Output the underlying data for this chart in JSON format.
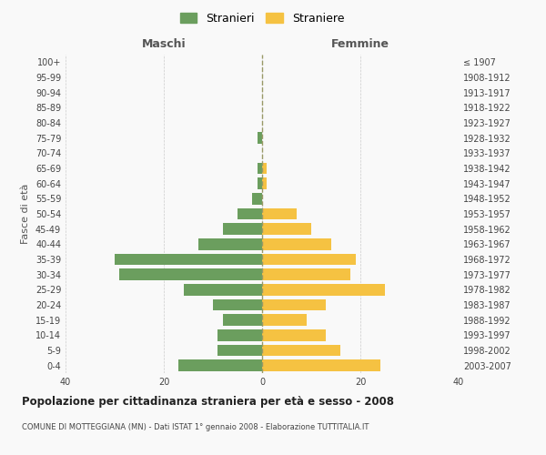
{
  "age_groups": [
    "0-4",
    "5-9",
    "10-14",
    "15-19",
    "20-24",
    "25-29",
    "30-34",
    "35-39",
    "40-44",
    "45-49",
    "50-54",
    "55-59",
    "60-64",
    "65-69",
    "70-74",
    "75-79",
    "80-84",
    "85-89",
    "90-94",
    "95-99",
    "100+"
  ],
  "birth_years": [
    "2003-2007",
    "1998-2002",
    "1993-1997",
    "1988-1992",
    "1983-1987",
    "1978-1982",
    "1973-1977",
    "1968-1972",
    "1963-1967",
    "1958-1962",
    "1953-1957",
    "1948-1952",
    "1943-1947",
    "1938-1942",
    "1933-1937",
    "1928-1932",
    "1923-1927",
    "1918-1922",
    "1913-1917",
    "1908-1912",
    "≤ 1907"
  ],
  "maschi": [
    17,
    9,
    9,
    8,
    10,
    16,
    29,
    30,
    13,
    8,
    5,
    2,
    1,
    1,
    0,
    1,
    0,
    0,
    0,
    0,
    0
  ],
  "femmine": [
    24,
    16,
    13,
    9,
    13,
    25,
    18,
    19,
    14,
    10,
    7,
    0,
    1,
    1,
    0,
    0,
    0,
    0,
    0,
    0,
    0
  ],
  "maschi_color": "#6b9e5e",
  "femmine_color": "#f5c242",
  "background_color": "#f9f9f9",
  "grid_color": "#cccccc",
  "dashed_line_color": "#999966",
  "title": "Popolazione per cittadinanza straniera per età e sesso - 2008",
  "subtitle": "COMUNE DI MOTTEGGIANA (MN) - Dati ISTAT 1° gennaio 2008 - Elaborazione TUTTITALIA.IT",
  "maschi_label": "Maschi",
  "femmine_label": "Femmine",
  "stranieri_label": "Stranieri",
  "straniere_label": "Straniere",
  "fasce_label": "Fasce di età",
  "xlim": 40,
  "bar_height": 0.75
}
